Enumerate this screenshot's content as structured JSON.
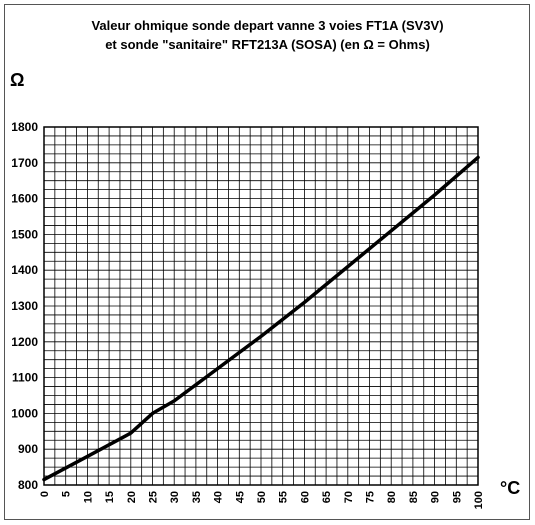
{
  "chart_data": {
    "type": "line",
    "title_line1": "Valeur ohmique sonde depart vanne 3 voies FT1A (SV3V)",
    "title_line2": "et sonde \"sanitaire\" RFT213A (SOSA) (en Ω = Ohms)",
    "ylabel": "Ω",
    "xlabel": "°C",
    "xlim": [
      0,
      100
    ],
    "ylim": [
      800,
      1800
    ],
    "y_ticks": [
      800,
      900,
      1000,
      1100,
      1200,
      1300,
      1400,
      1500,
      1600,
      1700,
      1800
    ],
    "x_ticks": [
      0,
      5,
      10,
      15,
      20,
      25,
      30,
      35,
      40,
      45,
      50,
      55,
      60,
      65,
      70,
      75,
      80,
      85,
      90,
      95,
      100
    ],
    "grid": true,
    "x_minor_step": 2.5,
    "y_minor_step": 25,
    "color": "#000000",
    "series": [
      {
        "x": [
          0,
          10,
          20,
          25,
          30,
          40,
          50,
          60,
          70,
          80,
          90,
          100
        ],
        "values": [
          815,
          880,
          945,
          1000,
          1035,
          1125,
          1215,
          1310,
          1410,
          1510,
          1610,
          1715
        ]
      }
    ]
  }
}
